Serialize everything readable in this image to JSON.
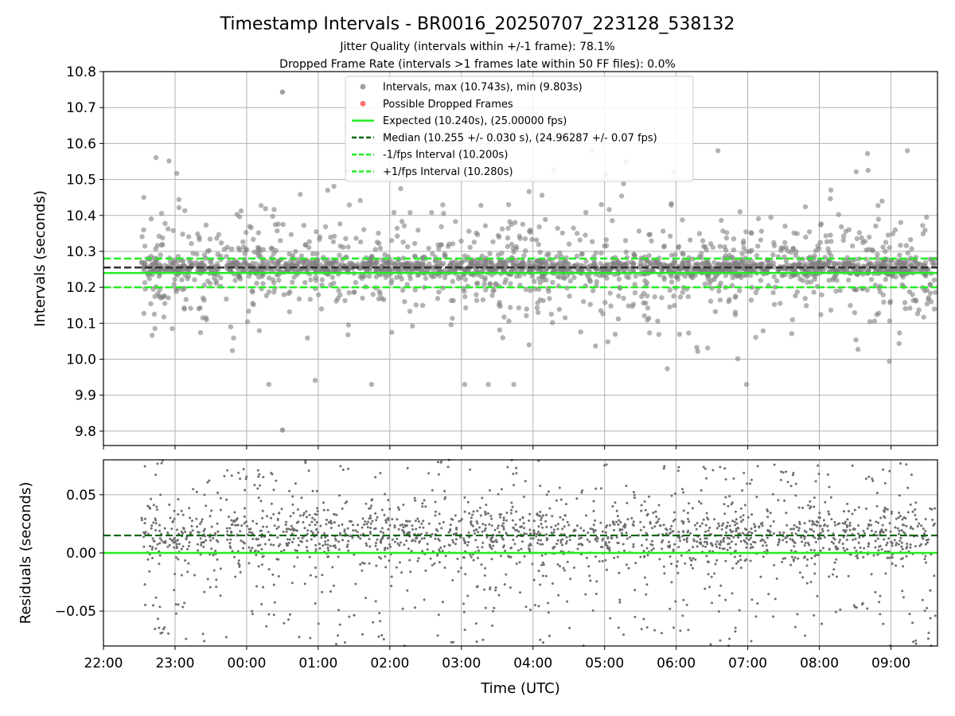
{
  "chart_data": {
    "type": "scatter",
    "title": "Timestamp Intervals - BR0016_20250707_223128_538132",
    "subtitles": [
      "Jitter Quality (intervals within +/-1 frame): 78.1%",
      "Dropped Frame Rate (intervals >1 frames late within 50 FF files): 0.0%"
    ],
    "xlabel": "Time (UTC)",
    "x_ticks": [
      "22:00",
      "23:00",
      "00:00",
      "01:00",
      "02:00",
      "03:00",
      "04:00",
      "05:00",
      "06:00",
      "07:00",
      "08:00",
      "09:00"
    ],
    "x_start": "22:00",
    "x_range_hours": [
      0.0,
      11.65
    ],
    "data_range_hours": [
      0.53,
      11.62
    ],
    "grid": true,
    "top": {
      "ylabel": "Intervals (seconds)",
      "ylim": [
        9.76,
        10.8
      ],
      "y_ticks": [
        "9.8",
        "9.9",
        "10.0",
        "10.1",
        "10.2",
        "10.3",
        "10.4",
        "10.5",
        "10.6",
        "10.7",
        "10.8"
      ],
      "expected": 10.24,
      "median": 10.255,
      "lower": 10.2,
      "upper": 10.28,
      "max": 10.743,
      "min": 9.803,
      "max_at_hour": 2.5,
      "min_at_hour": 2.5,
      "dropped_frames": [],
      "legend_position": "upper-center",
      "legend": [
        {
          "label": "Intervals, max (10.743s), min (9.803s)",
          "marker": "dot",
          "color": "#808080"
        },
        {
          "label": "Possible Dropped Frames",
          "marker": "dot",
          "color": "#ff4040"
        },
        {
          "label": "Expected (10.240s), (25.00000 fps)",
          "marker": "solid",
          "color": "#22ee22"
        },
        {
          "label": "Median (10.255 +/- 0.030 s), (24.96287 +/- 0.07 fps)",
          "marker": "dashed",
          "color": "#006400"
        },
        {
          "label": "-1/fps Interval (10.200s)",
          "marker": "dashed",
          "color": "#22ee22"
        },
        {
          "label": "+1/fps Interval (10.280s)",
          "marker": "dashed",
          "color": "#22ee22"
        }
      ]
    },
    "bottom": {
      "ylabel": "Residuals (seconds)",
      "ylim": [
        -0.08,
        0.08
      ],
      "y_ticks": [
        "−0.05",
        "0.00",
        "0.05"
      ],
      "zero": 0.0,
      "median_residual": 0.015
    },
    "colors": {
      "points": "#808080",
      "expected": "#22ee22",
      "median": "#006400",
      "grid": "#b0b0b0"
    }
  }
}
